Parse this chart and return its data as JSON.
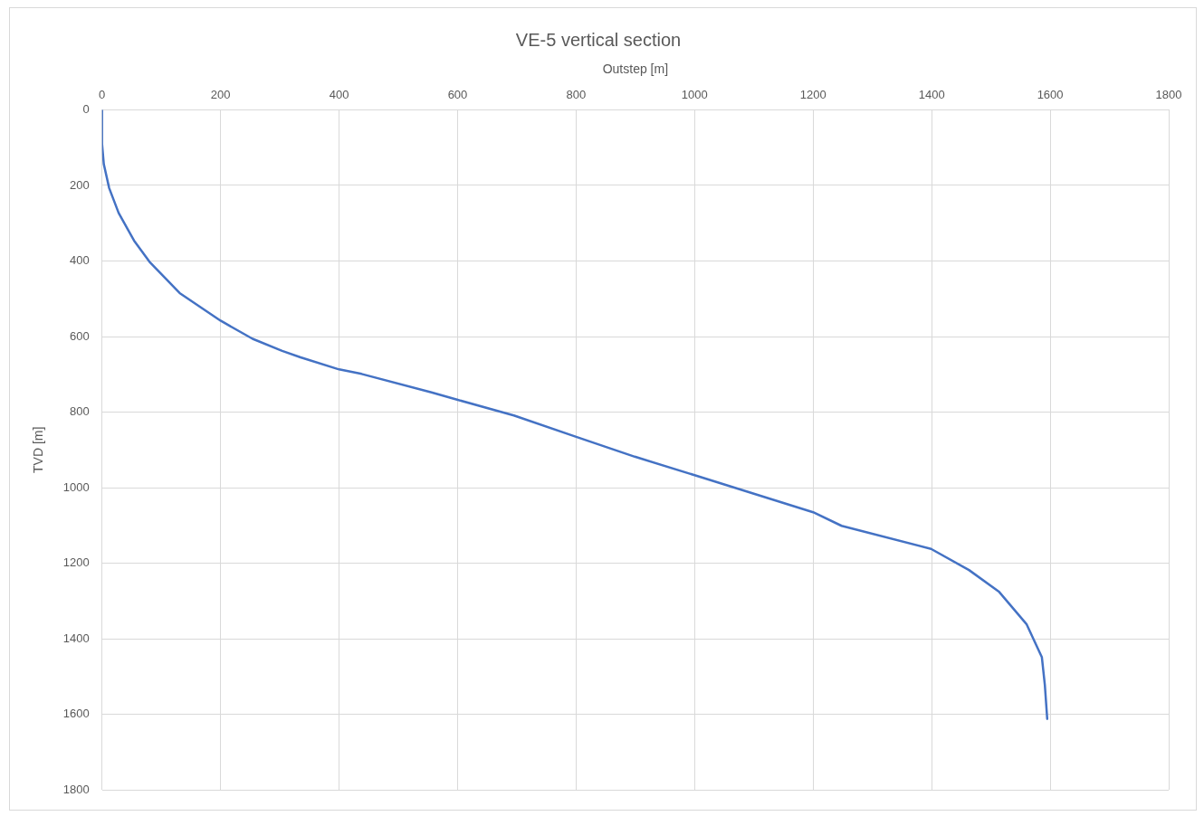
{
  "chart_data": {
    "type": "line",
    "title": "VE-5 vertical section",
    "xlabel": "Outstep [m]",
    "ylabel": "TVD [m]",
    "x": [
      0,
      0,
      3,
      12,
      28,
      54,
      80,
      131,
      200,
      254,
      304,
      335,
      400,
      438,
      556,
      599,
      695,
      799,
      899,
      1000,
      1200,
      1248,
      1399,
      1463,
      1514,
      1560,
      1586,
      1591,
      1595
    ],
    "series": [
      {
        "color": "#4472c4",
        "values": [
          0,
          90,
          144,
          207,
          273,
          346,
          402,
          485,
          558,
          606,
          638,
          655,
          687,
          699,
          748,
          767,
          809,
          865,
          918,
          967,
          1065,
          1101,
          1162,
          1218,
          1276,
          1361,
          1449,
          1522,
          1612
        ]
      }
    ],
    "xlim": [
      0,
      1800
    ],
    "xticks": [
      0,
      200,
      400,
      600,
      800,
      1000,
      1200,
      1400,
      1600,
      1800
    ],
    "ylim": [
      1800,
      0
    ],
    "yticks": [
      0,
      200,
      400,
      600,
      800,
      1000,
      1200,
      1400,
      1600,
      1800
    ],
    "grid": true,
    "legend": false,
    "marker": "none",
    "line_style": "solid"
  }
}
